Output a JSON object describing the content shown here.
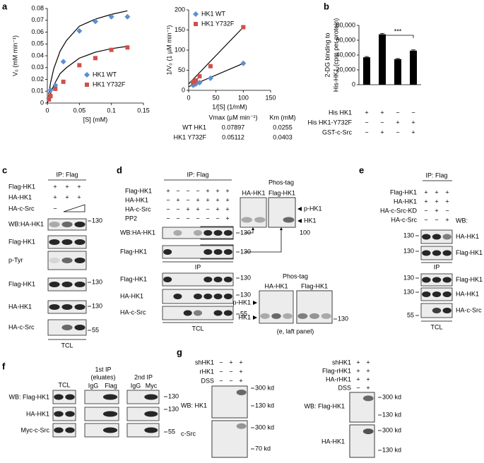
{
  "chart_data": [
    {
      "type": "scatter",
      "xlabel": "[S] (mM)",
      "ylabel": "V₀ (mM min⁻¹)",
      "xlim": [
        0,
        0.15
      ],
      "ylim": [
        0,
        0.08
      ],
      "xticks": [
        0,
        0.05,
        0.1,
        0.15
      ],
      "yticks": [
        0,
        0.01,
        0.02,
        0.03,
        0.04,
        0.05,
        0.06,
        0.07,
        0.08
      ],
      "legend": "lower right",
      "series": [
        {
          "name": "HK1 WT",
          "color": "#5b8fd0",
          "marker": "diamond",
          "x": [
            0.0025,
            0.005,
            0.0125,
            0.025,
            0.05,
            0.075,
            0.1,
            0.125
          ],
          "values": [
            0.004,
            0.011,
            0.015,
            0.035,
            0.061,
            0.069,
            0.073,
            0.073
          ]
        },
        {
          "name": "HK1 Y732F",
          "color": "#d0504a",
          "marker": "square",
          "x": [
            0.0025,
            0.005,
            0.0125,
            0.025,
            0.05,
            0.075,
            0.1,
            0.125
          ],
          "values": [
            0.003,
            0.006,
            0.012,
            0.018,
            0.032,
            0.038,
            0.045,
            0.047
          ]
        }
      ],
      "fits": [
        {
          "color": "#000000",
          "x": [
            0,
            0.005,
            0.01,
            0.02,
            0.03,
            0.05,
            0.075,
            0.1,
            0.125
          ],
          "values": [
            0,
            0.017,
            0.029,
            0.044,
            0.053,
            0.065,
            0.071,
            0.075,
            0.078
          ]
        },
        {
          "color": "#000000",
          "x": [
            0,
            0.005,
            0.01,
            0.02,
            0.03,
            0.05,
            0.075,
            0.1,
            0.125
          ],
          "values": [
            0,
            0.008,
            0.015,
            0.025,
            0.03,
            0.038,
            0.043,
            0.046,
            0.048
          ]
        }
      ]
    },
    {
      "type": "scatter",
      "xlabel": "1/[S] (1/mM)",
      "ylabel": "1/V₀ (1 µM min⁻¹)",
      "xlim": [
        0,
        150
      ],
      "ylim": [
        0,
        200
      ],
      "xticks": [
        0,
        50,
        100,
        150
      ],
      "yticks": [
        0,
        50,
        100,
        150,
        200
      ],
      "legend": "upper left",
      "series": [
        {
          "name": "HK1 WT",
          "color": "#5b8fd0",
          "marker": "diamond",
          "x": [
            8,
            10,
            13.3,
            20,
            40,
            100
          ],
          "values": [
            13,
            14,
            16,
            19,
            30,
            67
          ]
        },
        {
          "name": "HK1 Y732F",
          "color": "#d0504a",
          "marker": "square",
          "x": [
            8,
            10,
            13.3,
            20,
            40,
            100
          ],
          "values": [
            20,
            22,
            25,
            35,
            60,
            157
          ]
        }
      ],
      "fits": [
        {
          "color": "#000000",
          "x": [
            0,
            100
          ],
          "values": [
            9,
            67
          ]
        },
        {
          "color": "#000000",
          "x": [
            0,
            100
          ],
          "values": [
            16,
            157
          ]
        }
      ]
    },
    {
      "type": "bar",
      "ylabel": [
        "2-DG binding to",
        "His-HK1 (cpm per protein)"
      ],
      "ylim": [
        0,
        80000
      ],
      "yticks": [
        0,
        {
          "value": 20000,
          "label": "20,000"
        },
        {
          "value": 40000,
          "label": "40,000"
        },
        {
          "value": 60000,
          "label": "60,000"
        },
        {
          "value": 80000,
          "label": "80,000"
        }
      ],
      "values": [
        37000,
        68000,
        34500,
        46000
      ],
      "errors": [
        1000,
        1200,
        800,
        1000
      ],
      "color": "#000000",
      "annotation": "***",
      "conditions": [
        {
          "label": "His HK1",
          "signs": [
            "+",
            "+",
            "−",
            "−"
          ]
        },
        {
          "label": "His HK1-Y732F",
          "signs": [
            "−",
            "−",
            "+",
            "+"
          ]
        },
        {
          "label": "GST-c-Src",
          "signs": [
            "−",
            "+",
            "−",
            "+"
          ]
        }
      ]
    }
  ],
  "panel_letters": [
    "a",
    "b",
    "c",
    "d",
    "e",
    "f",
    "g"
  ],
  "kinetics_table": {
    "headers": [
      "Vmax (µM min⁻¹)",
      "Km (mM)"
    ],
    "rows": [
      [
        "WT HK1",
        "0.07897",
        "0.0255"
      ],
      [
        "HK1 Y732F",
        "0.05112",
        "0.0403"
      ]
    ]
  },
  "panel_c": {
    "header": "IP: Flag",
    "rows": [
      {
        "label": "Flag-HK1",
        "signs": [
          "+",
          "+",
          "+"
        ]
      },
      {
        "label": "HA-HK1",
        "signs": [
          "+",
          "+",
          "+"
        ]
      },
      {
        "label": "HA-c-Src",
        "signs": [
          "−"
        ]
      }
    ],
    "blots": [
      "WB:HA-HK1",
      "Flag-HK1",
      "p-Tyr",
      "Flag-HK1",
      "HA-HK1",
      "HA-c-Src"
    ],
    "markers": [
      130,
      130,
      130,
      55
    ],
    "footer": "TCL"
  },
  "panel_d": {
    "header": "IP: Flag",
    "rows": [
      {
        "label": "Flag-HK1",
        "signs": [
          "+",
          "−",
          "−",
          "−",
          "+",
          "+",
          "+"
        ]
      },
      {
        "label": "HA-HK1",
        "signs": [
          "−",
          "+",
          "−",
          "+",
          "+",
          "+",
          "+"
        ]
      },
      {
        "label": "HA-c-Src",
        "signs": [
          "−",
          "−",
          "+",
          "+",
          "−",
          "+",
          "+"
        ]
      },
      {
        "label": "PP2",
        "signs": [
          "−",
          "−",
          "−",
          "−",
          "−",
          "−",
          "+"
        ]
      }
    ],
    "blots": [
      "WB:HA-HK1",
      "Flag-HK1",
      "Flag-HK1",
      "HA-HK1",
      "HA-c-Src"
    ],
    "ip": "IP",
    "markers": [
      130,
      130,
      130,
      130,
      55
    ],
    "footer": "TCL",
    "phos_upper": {
      "title": "Phos-tag",
      "lanes": [
        "HA-HK1",
        "Flag-HK1"
      ],
      "bands": [
        "p-HK1",
        "HK1"
      ],
      "marker": 100
    },
    "phos_lower": {
      "title": "Phos-tag",
      "lanes": [
        "HA-HK1",
        "Flag-HK1"
      ],
      "bands": [
        "p-HK1",
        "HK1"
      ],
      "marker": 130,
      "note": "(e, laft panel)"
    }
  },
  "panel_e": {
    "header": "IP: Flag",
    "rows": [
      {
        "label": "Flag-HK1",
        "signs": [
          "+",
          "+",
          "+"
        ]
      },
      {
        "label": "HA-HK1",
        "signs": [
          "+",
          "+",
          "+"
        ]
      },
      {
        "label": "HA-c-Src-KD",
        "signs": [
          "−",
          "+",
          "−"
        ]
      },
      {
        "label": "HA-c-Src",
        "signs": [
          "−",
          "−",
          "+"
        ]
      }
    ],
    "wb": "WB:",
    "blots": [
      "HA-HK1",
      "Flag-HK1",
      "Flag-HK1",
      "HA-HK1",
      "HA-c-Src"
    ],
    "ip": "IP",
    "markers": [
      130,
      130,
      130,
      130,
      55
    ],
    "footer": "TCL"
  },
  "panel_f": {
    "tcl": "TCL",
    "first_ip": "1st IP",
    "first_ip_sub": "(eluates)",
    "second_ip": "2nd IP",
    "lanes": [
      "IgG",
      "Flag",
      "IgG",
      "Myc"
    ],
    "blots": [
      "WB: Flag-HK1",
      "HA-HK1",
      "Myc-c-Src"
    ],
    "markers": [
      130,
      130,
      55
    ]
  },
  "panel_g": {
    "left": {
      "rows": [
        {
          "label": "shHK1",
          "signs": [
            "−",
            "+",
            "+"
          ]
        },
        {
          "label": "rHK1",
          "signs": [
            "−",
            "−",
            "+"
          ]
        },
        {
          "label": "DSS",
          "signs": [
            "−",
            "−",
            "+"
          ]
        }
      ],
      "blots": [
        {
          "label": "WB: HK1",
          "markers": [
            "300 kd",
            "130 kd"
          ]
        },
        {
          "label": "c-Src",
          "markers": [
            "300 kd",
            "70 kd"
          ]
        }
      ]
    },
    "right": {
      "rows": [
        {
          "label": "shHK1",
          "signs": [
            "+",
            "+"
          ]
        },
        {
          "label": "Flag-rHK1",
          "signs": [
            "+",
            "+"
          ]
        },
        {
          "label": "HA-rHK1",
          "signs": [
            "+",
            "+"
          ]
        },
        {
          "label": "DSS",
          "signs": [
            "−",
            "+"
          ]
        }
      ],
      "blots": [
        {
          "label": "WB: Flag-HK1",
          "markers": [
            "300 kd",
            "130 kd"
          ]
        },
        {
          "label": "HA-HK1",
          "markers": [
            "300 kd",
            "130 kd"
          ]
        }
      ]
    }
  }
}
